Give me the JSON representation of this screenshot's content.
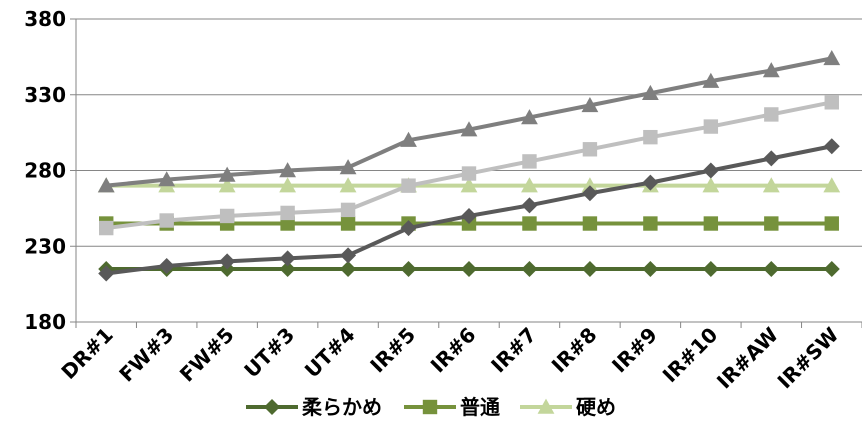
{
  "chart_data": {
    "type": "line",
    "categories": [
      "DR#1",
      "FW#3",
      "FW#5",
      "UT#3",
      "UT#4",
      "IR#5",
      "IR#6",
      "IR#7",
      "IR#8",
      "IR#9",
      "IR#10",
      "IR#AW",
      "IR#SW"
    ],
    "ylim": [
      180,
      380
    ],
    "yticks": [
      180,
      230,
      280,
      330,
      380
    ],
    "grid": true,
    "legend_position": "bottom",
    "series": [
      {
        "name": "柔らかめ",
        "color": "#4e6a2f",
        "marker": "diamond",
        "values": [
          215,
          215,
          215,
          215,
          215,
          215,
          215,
          215,
          215,
          215,
          215,
          215,
          215
        ]
      },
      {
        "name": "普通",
        "color": "#76923c",
        "marker": "square",
        "values": [
          245,
          245,
          245,
          245,
          245,
          245,
          245,
          245,
          245,
          245,
          245,
          245,
          245
        ]
      },
      {
        "name": "硬め",
        "color": "#c3d69b",
        "marker": "triangle",
        "values": [
          270,
          270,
          270,
          270,
          270,
          270,
          270,
          270,
          270,
          270,
          270,
          270,
          270
        ]
      },
      {
        "name": "",
        "color": "#595959",
        "marker": "diamond",
        "legend": false,
        "values": [
          212,
          217,
          220,
          222,
          224,
          242,
          250,
          257,
          265,
          272,
          280,
          288,
          296
        ]
      },
      {
        "name": "",
        "color": "#bfbfbf",
        "marker": "square",
        "legend": false,
        "values": [
          242,
          247,
          250,
          252,
          254,
          270,
          278,
          286,
          294,
          302,
          309,
          317,
          325
        ]
      },
      {
        "name": "",
        "color": "#7f7f7f",
        "marker": "triangle",
        "legend": false,
        "values": [
          270,
          274,
          277,
          280,
          282,
          300,
          307,
          315,
          323,
          331,
          339,
          346,
          354
        ]
      }
    ]
  }
}
